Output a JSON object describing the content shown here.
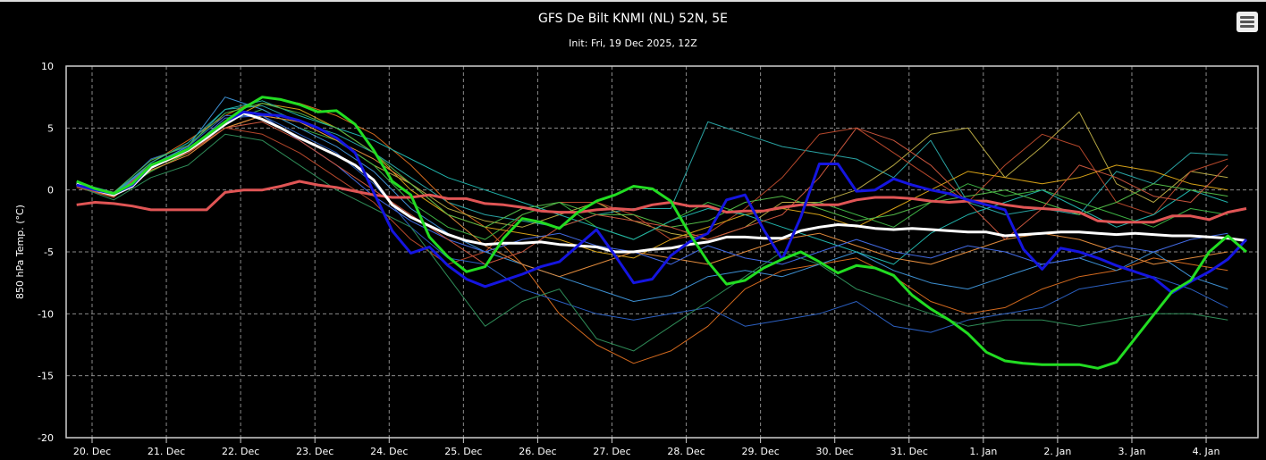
{
  "chart_data": {
    "type": "line",
    "title": "GFS De Bilt KNMI (NL) 52N, 5E",
    "subtitle": "Init: Fri, 19 Dec 2025, 12Z",
    "ylabel": "850 hPa Temp. (°C)",
    "xlabel": "",
    "ylim": [
      -20,
      10
    ],
    "yticks": [
      "10",
      "5",
      "0",
      "-5",
      "-10",
      "-15",
      "-20"
    ],
    "ytick_values": [
      10,
      5,
      0,
      -5,
      -10,
      -15,
      -20
    ],
    "xticks": [
      "20. Dec",
      "21. Dec",
      "22. Dec",
      "23. Dec",
      "24. Dec",
      "25. Dec",
      "26. Dec",
      "27. Dec",
      "28. Dec",
      "29. Dec",
      "30. Dec",
      "31. Dec",
      "1. Jan",
      "2. Jan",
      "3. Jan",
      "4. Jan"
    ],
    "x_start": "2025-12-19 19:00",
    "grid": true,
    "legend": "none",
    "main_series": [
      {
        "color": "#e05555",
        "step_hours": 6,
        "values": [
          -1.2,
          -1.0,
          -1.1,
          -1.3,
          -1.6,
          -1.6,
          -1.6,
          -1.6,
          -0.2,
          0.0,
          0.0,
          0.3,
          0.7,
          0.4,
          0.2,
          -0.1,
          -0.4,
          -0.6,
          -0.6,
          -0.4,
          -0.7,
          -0.7,
          -1.1,
          -1.2,
          -1.4,
          -1.7,
          -1.8,
          -1.8,
          -1.6,
          -1.5,
          -1.6,
          -1.2,
          -1.0,
          -1.3,
          -1.3,
          -1.8,
          -1.7,
          -1.7,
          -1.4,
          -1.2,
          -1.2,
          -1.2,
          -0.8,
          -0.6,
          -0.6,
          -0.7,
          -0.9,
          -1.0,
          -0.9,
          -0.9,
          -1.2,
          -1.4,
          -1.5,
          -1.6,
          -1.8,
          -2.5,
          -2.6,
          -2.6,
          -2.6,
          -2.1,
          -2.1,
          -2.4,
          -1.8,
          -1.5
        ]
      },
      {
        "color": "#ffffff",
        "step_hours": 6,
        "values": [
          0.5,
          0.0,
          -0.4,
          0.3,
          1.8,
          2.5,
          3.2,
          4.2,
          5.3,
          6.2,
          5.7,
          5.0,
          4.2,
          3.5,
          2.8,
          2.0,
          0.8,
          -1.2,
          -2.2,
          -2.9,
          -3.6,
          -4.1,
          -4.4,
          -4.3,
          -4.3,
          -4.2,
          -4.4,
          -4.5,
          -4.6,
          -5.0,
          -5.0,
          -4.8,
          -4.7,
          -4.4,
          -4.2,
          -3.8,
          -3.8,
          -3.9,
          -3.9,
          -3.3,
          -3.0,
          -2.8,
          -2.9,
          -3.1,
          -3.2,
          -3.1,
          -3.2,
          -3.3,
          -3.4,
          -3.4,
          -3.7,
          -3.6,
          -3.5,
          -3.4,
          -3.4,
          -3.5,
          -3.6,
          -3.5,
          -3.6,
          -3.7,
          -3.7,
          -3.8,
          -3.9,
          -4.1
        ]
      },
      {
        "color": "#1515e0",
        "step_hours": 6,
        "values": [
          0.4,
          0.0,
          -0.3,
          0.4,
          2.0,
          2.6,
          3.3,
          4.4,
          5.5,
          6.3,
          6.1,
          6.0,
          5.6,
          5.0,
          4.2,
          3.0,
          -0.2,
          -3.3,
          -5.1,
          -4.6,
          -6.1,
          -7.2,
          -7.8,
          -7.3,
          -6.8,
          -6.2,
          -5.8,
          -4.5,
          -3.2,
          -5.3,
          -7.5,
          -7.2,
          -5.3,
          -4.2,
          -3.5,
          -0.8,
          -0.4,
          -3.2,
          -5.6,
          -2.2,
          2.1,
          2.1,
          -0.1,
          0.0,
          0.9,
          0.4,
          0.0,
          -0.3,
          -0.8,
          -1.2,
          -1.6,
          -4.8,
          -6.4,
          -4.7,
          -5.0,
          -5.5,
          -6.1,
          -6.6,
          -7.1,
          -8.3,
          -7.4,
          -6.6,
          -5.6,
          -4.0
        ]
      },
      {
        "color": "#22dd22",
        "step_hours": 6,
        "values": [
          0.7,
          0.1,
          -0.3,
          0.5,
          2.0,
          2.6,
          3.3,
          4.4,
          5.5,
          6.6,
          7.5,
          7.3,
          6.9,
          6.3,
          6.4,
          5.3,
          3.2,
          0.7,
          -0.4,
          -3.8,
          -5.4,
          -6.6,
          -6.2,
          -3.9,
          -2.3,
          -2.6,
          -3.1,
          -1.8,
          -0.9,
          -0.4,
          0.3,
          0.1,
          -0.9,
          -3.5,
          -5.8,
          -7.6,
          -7.3,
          -6.3,
          -5.6,
          -5.0,
          -5.8,
          -6.7,
          -6.1,
          -6.3,
          -6.9,
          -8.5,
          -9.6,
          -10.5,
          -11.6,
          -13.1,
          -13.8,
          -14.0,
          -14.1,
          -14.1,
          -14.1,
          -14.4,
          -13.9,
          -12.0,
          -10.1,
          -8.2,
          -7.3,
          -5.0,
          -3.7,
          -5.0
        ]
      }
    ],
    "members": [
      {
        "color": "#29a3a3",
        "step_hours": 12,
        "values": [
          0.5,
          -0.3,
          2.0,
          3.5,
          6.5,
          6.8,
          5.5,
          4.5,
          3.0,
          1.0,
          -1.0,
          -2.0,
          -2.5,
          -3.0,
          -2.0,
          -1.5,
          -1.5,
          5.5,
          4.5,
          3.5,
          3.0,
          2.5,
          1.0,
          4.0,
          -1.0,
          -2.0,
          -1.5,
          -2.0,
          1.5,
          0.5,
          3.0,
          2.8
        ]
      },
      {
        "color": "#d2691e",
        "step_hours": 12,
        "values": [
          0.3,
          -0.5,
          2.2,
          4.0,
          6.0,
          7.5,
          7.0,
          6.0,
          4.5,
          2.0,
          -1.0,
          -3.0,
          -6.0,
          -10.0,
          -12.5,
          -14.0,
          -13.0,
          -11.0,
          -8.0,
          -6.5,
          -6.0,
          -5.5,
          -7.0,
          -9.0,
          -10.0,
          -9.5,
          -8.0,
          -7.0,
          -6.5,
          -5.5,
          -6.0,
          -6.5
        ]
      },
      {
        "color": "#b5a642",
        "step_hours": 12,
        "values": [
          0.4,
          -0.4,
          1.5,
          3.0,
          5.0,
          6.0,
          5.5,
          4.0,
          2.0,
          0.5,
          -1.5,
          -2.5,
          -3.0,
          -2.0,
          -1.0,
          -2.5,
          -3.5,
          -4.0,
          -3.0,
          -1.0,
          -1.0,
          0.0,
          2.0,
          4.5,
          5.0,
          1.0,
          3.5,
          6.3,
          0.5,
          -1.0,
          1.5,
          1.0
        ]
      },
      {
        "color": "#b5472b",
        "step_hours": 12,
        "values": [
          0.2,
          -0.6,
          1.8,
          3.0,
          5.0,
          4.5,
          3.0,
          1.0,
          -1.0,
          -4.0,
          -6.0,
          -5.0,
          -2.0,
          -1.0,
          -1.0,
          -2.0,
          -4.0,
          -3.5,
          -1.5,
          1.0,
          4.5,
          5.0,
          3.0,
          1.0,
          -1.0,
          2.0,
          4.5,
          3.5,
          -1.0,
          -2.0,
          1.5,
          2.5
        ]
      },
      {
        "color": "#3cb043",
        "step_hours": 12,
        "values": [
          0.3,
          -0.5,
          1.5,
          3.0,
          5.5,
          6.5,
          5.0,
          4.0,
          2.0,
          -1.0,
          -3.0,
          -4.0,
          -2.0,
          -1.0,
          -3.0,
          -4.0,
          -2.5,
          -1.0,
          -2.0,
          -1.5,
          -1.0,
          -2.0,
          -3.0,
          -1.0,
          0.5,
          -0.5,
          0.0,
          -1.0,
          -2.0,
          -3.0,
          -1.5,
          -2.0
        ]
      },
      {
        "color": "#2b5fc0",
        "step_hours": 12,
        "values": [
          0.5,
          -0.3,
          2.5,
          3.5,
          6.0,
          6.0,
          4.5,
          3.0,
          0.5,
          -3.0,
          -5.5,
          -6.0,
          -8.0,
          -9.0,
          -10.0,
          -10.5,
          -10.0,
          -9.5,
          -11.0,
          -10.5,
          -10.0,
          -9.0,
          -11.0,
          -11.5,
          -10.5,
          -10.0,
          -9.5,
          -8.0,
          -7.5,
          -7.0,
          -8.0,
          -9.5
        ]
      },
      {
        "color": "#3d8fd1",
        "step_hours": 12,
        "values": [
          0.6,
          -0.2,
          2.0,
          3.5,
          7.5,
          6.5,
          5.0,
          3.5,
          1.5,
          -1.5,
          -3.5,
          -5.0,
          -6.0,
          -7.0,
          -8.0,
          -9.0,
          -8.5,
          -7.0,
          -6.5,
          -7.0,
          -6.0,
          -5.0,
          -6.5,
          -7.5,
          -8.0,
          -7.0,
          -6.0,
          -5.5,
          -6.5,
          -5.0,
          -7.0,
          -8.0
        ]
      },
      {
        "color": "#2e8b57",
        "step_hours": 12,
        "values": [
          0.3,
          -0.8,
          1.0,
          2.0,
          4.5,
          4.0,
          2.0,
          0.0,
          -1.5,
          -3.0,
          -7.0,
          -11.0,
          -9.0,
          -8.0,
          -12.0,
          -13.0,
          -11.0,
          -9.0,
          -7.0,
          -5.0,
          -6.0,
          -8.0,
          -9.0,
          -10.0,
          -11.0,
          -10.5,
          -10.5,
          -11.0,
          -10.5,
          -10.0,
          -10.0,
          -10.5
        ]
      },
      {
        "color": "#d4a017",
        "step_hours": 12,
        "values": [
          0.4,
          -0.4,
          1.8,
          3.0,
          5.5,
          7.0,
          6.5,
          5.0,
          3.0,
          0.0,
          -2.0,
          -3.0,
          -3.5,
          -4.0,
          -5.0,
          -5.5,
          -4.0,
          -3.0,
          -2.0,
          -1.5,
          -2.0,
          -3.0,
          -1.5,
          0.0,
          1.5,
          1.0,
          0.5,
          1.0,
          2.0,
          1.5,
          0.5,
          0.0
        ]
      },
      {
        "color": "#20b2aa",
        "step_hours": 12,
        "values": [
          0.5,
          -0.3,
          2.2,
          3.8,
          6.5,
          7.2,
          6.0,
          5.0,
          4.0,
          2.5,
          1.0,
          0.0,
          -1.0,
          -2.0,
          -3.0,
          -4.0,
          -2.5,
          -1.5,
          -2.0,
          -3.0,
          -4.0,
          -5.0,
          -6.0,
          -3.5,
          -2.0,
          -1.0,
          0.0,
          -1.5,
          -3.0,
          -2.0,
          0.0,
          -1.0
        ]
      },
      {
        "color": "#e08a3c",
        "step_hours": 12,
        "values": [
          0.3,
          -0.5,
          1.6,
          2.8,
          5.0,
          6.0,
          5.5,
          4.0,
          2.5,
          0.5,
          -2.0,
          -4.5,
          -6.0,
          -7.0,
          -6.0,
          -5.0,
          -5.5,
          -6.0,
          -5.0,
          -4.0,
          -3.5,
          -4.5,
          -5.5,
          -6.0,
          -5.0,
          -4.0,
          -3.5,
          -4.0,
          -5.0,
          -6.0,
          -5.5,
          -5.0
        ]
      },
      {
        "color": "#4169e1",
        "step_hours": 12,
        "values": [
          0.4,
          -0.4,
          2.0,
          3.2,
          5.8,
          6.0,
          4.0,
          2.0,
          -0.5,
          -2.5,
          -4.0,
          -5.0,
          -4.0,
          -3.5,
          -4.5,
          -5.0,
          -6.0,
          -4.5,
          -5.5,
          -6.0,
          -5.0,
          -4.0,
          -5.0,
          -5.5,
          -4.5,
          -5.0,
          -6.0,
          -5.5,
          -4.5,
          -5.0,
          -4.0,
          -3.5
        ]
      },
      {
        "color": "#52b947",
        "step_hours": 12,
        "values": [
          0.5,
          -0.2,
          2.4,
          3.6,
          6.2,
          7.0,
          6.2,
          5.0,
          3.0,
          0.5,
          -2.0,
          -3.0,
          -1.5,
          -1.0,
          -2.0,
          -2.0,
          -3.0,
          -2.5,
          -1.0,
          -0.5,
          -1.5,
          -2.5,
          -2.0,
          -1.0,
          -0.5,
          0.0,
          -1.0,
          -2.0,
          -1.0,
          0.5,
          0.0,
          -0.5
        ]
      },
      {
        "color": "#c8553d",
        "step_hours": 12,
        "values": [
          0.3,
          -0.6,
          2.0,
          3.0,
          5.0,
          5.5,
          4.0,
          2.0,
          0.0,
          -2.0,
          -4.0,
          -6.0,
          -5.0,
          -3.0,
          -2.0,
          -2.5,
          -3.0,
          -4.0,
          -3.0,
          -2.0,
          1.0,
          5.0,
          4.0,
          2.0,
          -1.0,
          -4.0,
          -1.5,
          2.0,
          1.0,
          -0.5,
          -1.0,
          2.0
        ]
      }
    ]
  },
  "toolbar": {
    "menu_icon": "hamburger-menu-icon"
  }
}
